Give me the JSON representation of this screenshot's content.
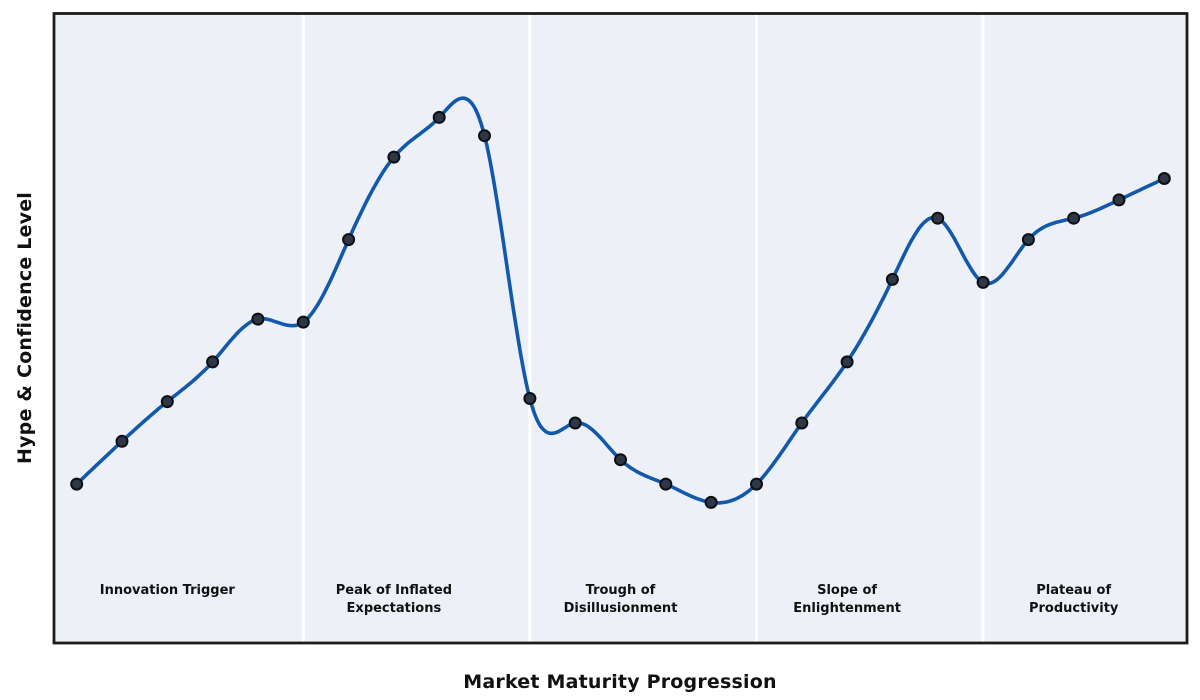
{
  "chart_data": {
    "type": "line",
    "xlabel": "Market Maturity Progression",
    "ylabel": "Hype & Confidence Level",
    "x": [
      0,
      1,
      2,
      3,
      4,
      5,
      6,
      7,
      8,
      9,
      10,
      11,
      12,
      13,
      14,
      15,
      16,
      17,
      18,
      19,
      20,
      21,
      22,
      23,
      24
    ],
    "series": [
      {
        "name": "Hype & Confidence",
        "values": [
          20,
          27,
          33.5,
          40,
          47,
          46.5,
          60,
          73.5,
          80,
          77,
          34,
          30,
          24,
          20,
          17,
          20,
          30,
          40,
          53.5,
          63.5,
          53,
          60,
          63.5,
          66.5,
          70
        ]
      }
    ],
    "xlim": [
      -0.5,
      24.5
    ],
    "ylim": [
      -6,
      97
    ],
    "grid": false,
    "axis_ticks": "none",
    "legend": "none",
    "smoothing": "cubic-spline",
    "marker": "circle",
    "phases": [
      {
        "label": "Innovation Trigger",
        "x_start": -0.5,
        "x_end": 5,
        "x_center": 2
      },
      {
        "label": "Peak of Inflated\nExpectations",
        "x_start": 5,
        "x_end": 10,
        "x_center": 7
      },
      {
        "label": "Trough of\nDisillusionment",
        "x_start": 10,
        "x_end": 15,
        "x_center": 12
      },
      {
        "label": "Slope of\nEnlightenment",
        "x_start": 15,
        "x_end": 20,
        "x_center": 17
      },
      {
        "label": "Plateau of\nProductivity",
        "x_start": 20,
        "x_end": 24.5,
        "x_center": 22
      }
    ],
    "colors": {
      "line": "#1259ac",
      "marker_fill": "#2d3746",
      "marker_edge": "#0c1014",
      "plot_bg": "#edf1f7",
      "separator": "#ffffff",
      "border": "#1c1c1c",
      "text": "#111111",
      "page_bg": "#ffffff"
    }
  }
}
